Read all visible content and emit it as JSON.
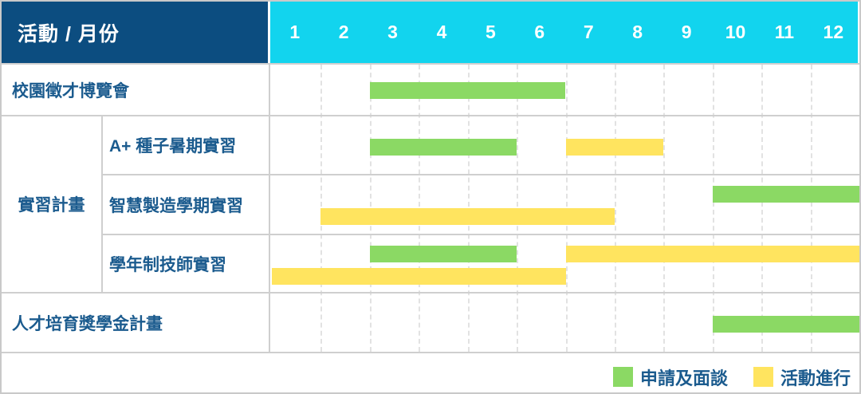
{
  "header": {
    "corner_label": "活動 / 月份"
  },
  "months": [
    "1",
    "2",
    "3",
    "4",
    "5",
    "6",
    "7",
    "8",
    "9",
    "10",
    "11",
    "12"
  ],
  "legend": [
    {
      "label": "申請及面談",
      "status": "apply",
      "color": "#8bd964"
    },
    {
      "label": "活動進行",
      "status": "active",
      "color": "#ffe45f"
    }
  ],
  "colors": {
    "header_bg": "#0c4d80",
    "month_header_bg": "#12d4ee",
    "label_text": "#1b5b8e",
    "grid_line": "#cfcfcf",
    "bar_apply": "#8bd964",
    "bar_active": "#ffe45f"
  },
  "chart_data": {
    "type": "gantt",
    "title": "活動 / 月份",
    "x_unit": "month",
    "x_range": [
      1,
      12
    ],
    "legend_entries": [
      "申請及面談",
      "活動進行"
    ],
    "rows": [
      {
        "group": "",
        "label": "校園徵才博覽會",
        "bars": [
          {
            "start": 3,
            "end": 6,
            "status": "apply",
            "lane": "single"
          }
        ]
      },
      {
        "group": "實習計畫",
        "label": "A+ 種子暑期實習",
        "bars": [
          {
            "start": 3,
            "end": 5,
            "status": "apply",
            "lane": "single"
          },
          {
            "start": 7,
            "end": 8,
            "status": "active",
            "lane": "single"
          }
        ]
      },
      {
        "group": "實習計畫",
        "label": "智慧製造學期實習",
        "bars": [
          {
            "start": 10,
            "end": 12,
            "status": "apply",
            "lane": "top"
          },
          {
            "start": 2,
            "end": 7,
            "status": "active",
            "lane": "bottom"
          }
        ]
      },
      {
        "group": "實習計畫",
        "label": "學年制技師實習",
        "bars": [
          {
            "start": 3,
            "end": 5,
            "status": "apply",
            "lane": "top"
          },
          {
            "start": 7,
            "end": 12,
            "status": "active",
            "lane": "top"
          },
          {
            "start": 1,
            "end": 6,
            "status": "active",
            "lane": "bottom"
          }
        ]
      },
      {
        "group": "",
        "label": "人才培育獎學金計畫",
        "bars": [
          {
            "start": 10,
            "end": 12,
            "status": "apply",
            "lane": "single"
          }
        ]
      }
    ]
  }
}
